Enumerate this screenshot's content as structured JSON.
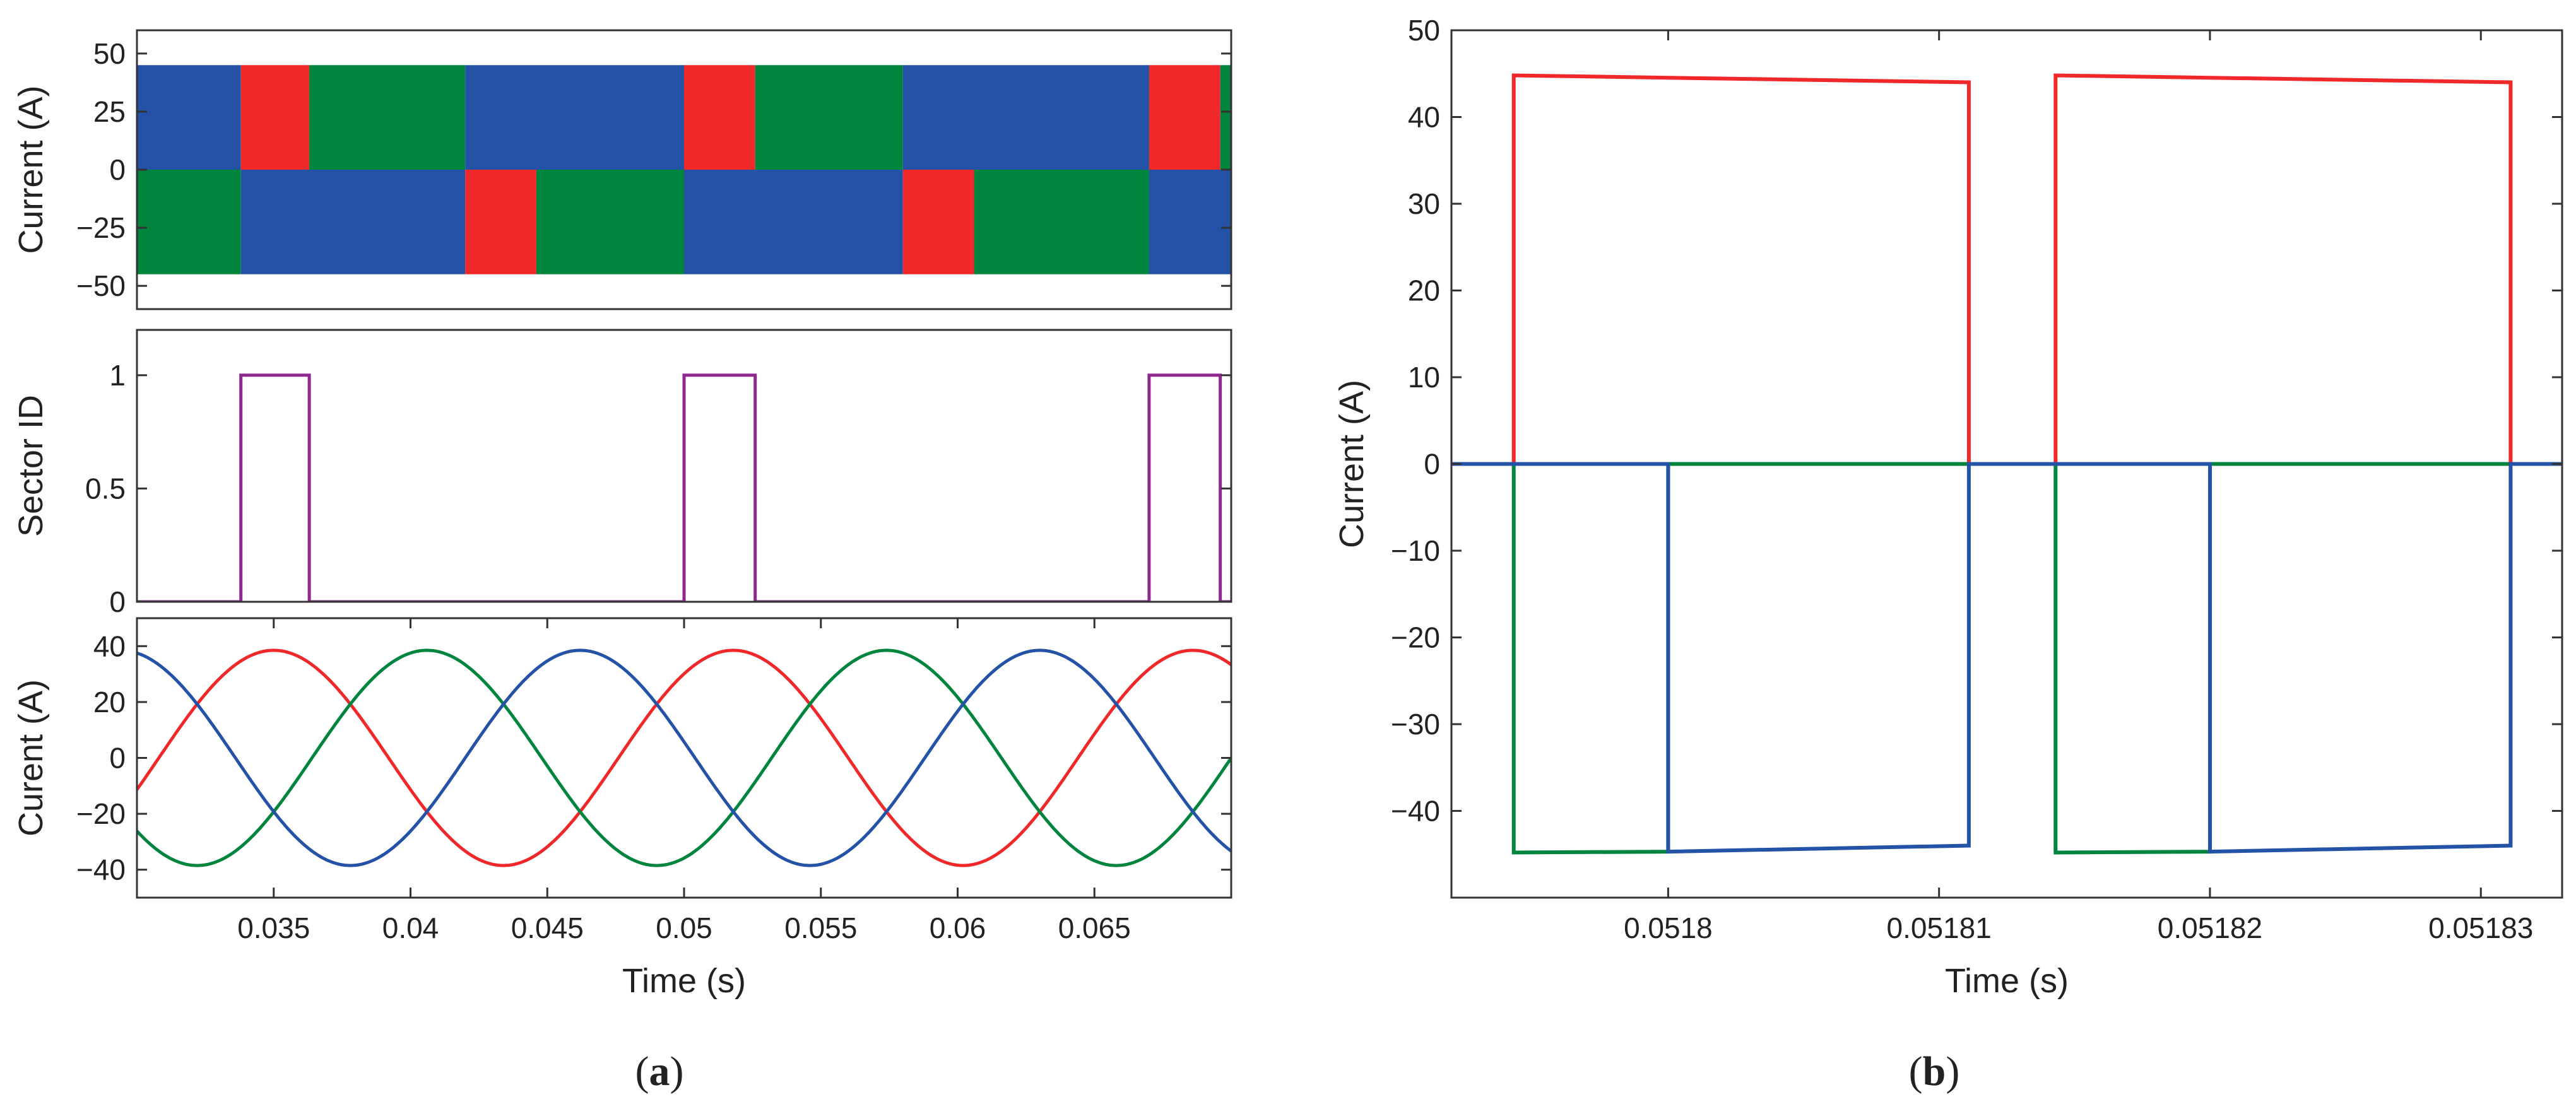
{
  "colors": {
    "phase_a": "#f0282a",
    "phase_b": "#00843e",
    "phase_c": "#2352a6",
    "sector": "#8e278f"
  },
  "captions": {
    "a": "a",
    "b": "b"
  },
  "chart_data": [
    {
      "id": "a1",
      "type": "area",
      "ylabel": "Current (A)",
      "xlim": [
        0.03,
        0.07
      ],
      "ylim": [
        -60,
        60
      ],
      "yticks": [
        -50,
        -25,
        0,
        25,
        50
      ],
      "yticklabels": [
        "−50",
        "−25",
        "0",
        "25",
        "50"
      ],
      "amplitude": 45,
      "top_blocks": [
        {
          "from": 0.03,
          "to": 0.0338,
          "phase": "c"
        },
        {
          "from": 0.0338,
          "to": 0.0363,
          "phase": "a"
        },
        {
          "from": 0.0363,
          "to": 0.042,
          "phase": "b"
        },
        {
          "from": 0.042,
          "to": 0.05,
          "phase": "c"
        },
        {
          "from": 0.05,
          "to": 0.0526,
          "phase": "a"
        },
        {
          "from": 0.0526,
          "to": 0.058,
          "phase": "b"
        },
        {
          "from": 0.058,
          "to": 0.067,
          "phase": "c"
        },
        {
          "from": 0.067,
          "to": 0.0696,
          "phase": "a"
        },
        {
          "from": 0.0696,
          "to": 0.07,
          "phase": "b"
        }
      ],
      "bottom_blocks": [
        {
          "from": 0.03,
          "to": 0.0338,
          "phase": "b"
        },
        {
          "from": 0.0338,
          "to": 0.042,
          "phase": "c"
        },
        {
          "from": 0.042,
          "to": 0.0446,
          "phase": "a"
        },
        {
          "from": 0.0446,
          "to": 0.05,
          "phase": "b"
        },
        {
          "from": 0.05,
          "to": 0.058,
          "phase": "c"
        },
        {
          "from": 0.058,
          "to": 0.0606,
          "phase": "a"
        },
        {
          "from": 0.0606,
          "to": 0.067,
          "phase": "b"
        },
        {
          "from": 0.067,
          "to": 0.07,
          "phase": "c"
        }
      ]
    },
    {
      "id": "a2",
      "type": "line",
      "ylabel": "Sector ID",
      "xlim": [
        0.03,
        0.07
      ],
      "ylim": [
        0,
        1.2
      ],
      "yticks": [
        0,
        0.5,
        1
      ],
      "yticklabels": [
        "0",
        "0.5",
        "1"
      ],
      "pulses": [
        [
          0.0338,
          0.0363
        ],
        [
          0.05,
          0.0526
        ],
        [
          0.067,
          0.0696
        ]
      ],
      "high": 1,
      "low": 0
    },
    {
      "id": "a3",
      "type": "line",
      "ylabel": "Curent (A)",
      "xlabel": "Time (s)",
      "xlim": [
        0.03,
        0.07
      ],
      "ylim": [
        -50,
        50
      ],
      "yticks": [
        -40,
        -20,
        0,
        20,
        40
      ],
      "yticklabels": [
        "−40",
        "−20",
        "0",
        "20",
        "40"
      ],
      "xticks": [
        0.035,
        0.04,
        0.045,
        0.05,
        0.055,
        0.06,
        0.065
      ],
      "xticklabels": [
        "0.035",
        "0.04",
        "0.045",
        "0.05",
        "0.055",
        "0.06",
        "0.065"
      ],
      "amplitude": 38.5,
      "period": 0.0168,
      "series": [
        {
          "phase": "a",
          "peak_time": 0.035
        },
        {
          "phase": "b",
          "peak_time": 0.0406
        },
        {
          "phase": "c",
          "peak_time": 0.0462
        }
      ]
    },
    {
      "id": "b",
      "type": "line",
      "ylabel": "Current (A)",
      "xlabel": "Time (s)",
      "xlim": [
        0.051792,
        0.051833
      ],
      "ylim": [
        -50,
        50
      ],
      "yticks": [
        -40,
        -30,
        -20,
        -10,
        0,
        10,
        20,
        30,
        40,
        50
      ],
      "yticklabels": [
        "−40",
        "−30",
        "−20",
        "−10",
        "0",
        "10",
        "20",
        "30",
        "40",
        "50"
      ],
      "xticks": [
        0.0518,
        0.05181,
        0.05182,
        0.05183
      ],
      "xticklabels": [
        "0.0518",
        "0.05181",
        "0.05182",
        "0.05183"
      ],
      "series": [
        {
          "phase": "a",
          "points": [
            [
              0.051792,
              0
            ],
            [
              0.0517943,
              0
            ],
            [
              0.0517943,
              44.8
            ],
            [
              0.0518111,
              44.0
            ],
            [
              0.0518111,
              0
            ],
            [
              0.0518143,
              0
            ],
            [
              0.0518143,
              44.8
            ],
            [
              0.0518311,
              44.0
            ],
            [
              0.0518311,
              0
            ],
            [
              0.051833,
              0
            ]
          ]
        },
        {
          "phase": "b",
          "points": [
            [
              0.051792,
              0
            ],
            [
              0.0517943,
              0
            ],
            [
              0.0517943,
              -44.8
            ],
            [
              0.0518,
              -44.7
            ],
            [
              0.0518,
              0
            ],
            [
              0.0518143,
              0
            ],
            [
              0.0518143,
              -44.8
            ],
            [
              0.05182,
              -44.7
            ],
            [
              0.05182,
              0
            ],
            [
              0.051833,
              0
            ]
          ]
        },
        {
          "phase": "c",
          "points": [
            [
              0.051792,
              0
            ],
            [
              0.0518,
              0
            ],
            [
              0.0518,
              -44.7
            ],
            [
              0.0518111,
              -44.0
            ],
            [
              0.0518111,
              0
            ],
            [
              0.05182,
              0
            ],
            [
              0.05182,
              -44.7
            ],
            [
              0.0518311,
              -44.0
            ],
            [
              0.0518311,
              0
            ],
            [
              0.051833,
              0
            ]
          ]
        }
      ]
    }
  ]
}
